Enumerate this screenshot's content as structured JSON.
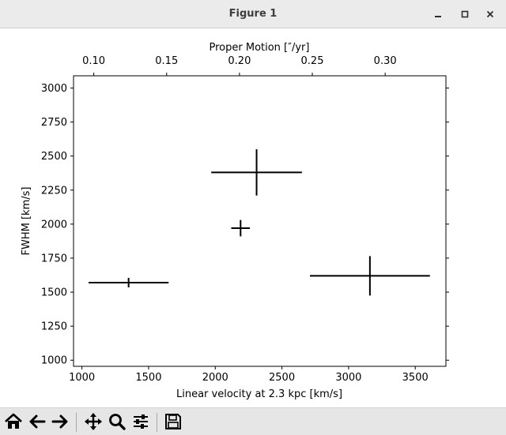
{
  "window": {
    "title": "Figure 1",
    "controls": [
      "minimize-icon",
      "maximize-icon",
      "close-icon"
    ]
  },
  "toolbar": {
    "buttons": [
      {
        "name": "home-button",
        "icon": "home-icon"
      },
      {
        "name": "back-button",
        "icon": "arrow-left-icon"
      },
      {
        "name": "forward-button",
        "icon": "arrow-right-icon"
      },
      {
        "name": "pan-button",
        "icon": "move-icon"
      },
      {
        "name": "zoom-button",
        "icon": "magnifier-icon"
      },
      {
        "name": "configure-subplots-button",
        "icon": "sliders-icon"
      },
      {
        "name": "save-button",
        "icon": "floppy-disk-icon"
      }
    ]
  },
  "chart_data": {
    "type": "scatter",
    "title": "",
    "xlabel": "Linear velocity at 2.3 kpc [km/s]",
    "ylabel": "FWHM [km/s]",
    "x2label": "Proper Motion [″/yr]",
    "xlim": [
      937,
      3730
    ],
    "ylim": [
      955,
      3090
    ],
    "x2lim": [
      0.0861,
      0.3417
    ],
    "xticks": [
      1000,
      1500,
      2000,
      2500,
      3000,
      3500
    ],
    "xtick_labels": [
      "1000",
      "1500",
      "2000",
      "2500",
      "3000",
      "3500"
    ],
    "yticks": [
      1000,
      1250,
      1500,
      1750,
      2000,
      2250,
      2500,
      2750,
      3000
    ],
    "ytick_labels": [
      "1000",
      "1250",
      "1500",
      "1750",
      "2000",
      "2250",
      "2500",
      "2750",
      "3000"
    ],
    "x2ticks": [
      0.1,
      0.15,
      0.2,
      0.25,
      0.3
    ],
    "x2tick_labels": [
      "0.10",
      "0.15",
      "0.20",
      "0.25",
      "0.30"
    ],
    "grid": false,
    "marker": "none",
    "points": [
      {
        "x": 1350,
        "y": 1570,
        "xerr": 300,
        "yerr": 35
      },
      {
        "x": 2310,
        "y": 2380,
        "xerr": 340,
        "yerr": 170
      },
      {
        "x": 2190,
        "y": 1970,
        "xerr": 70,
        "yerr": 60
      },
      {
        "x": 3160,
        "y": 1620,
        "xerr": 450,
        "yerr": 145
      }
    ],
    "color": "#000000"
  }
}
